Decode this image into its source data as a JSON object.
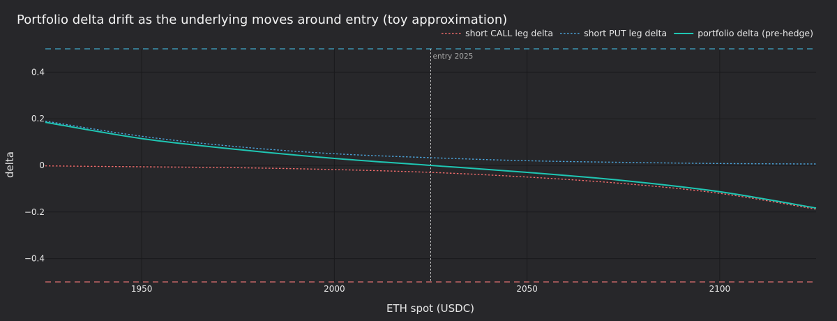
{
  "chart_data": {
    "type": "line",
    "title": "Portfolio delta drift as the underlying moves around entry (toy approximation)",
    "xlabel": "ETH spot (USDC)",
    "ylabel": "delta",
    "xlim": [
      1925,
      2125
    ],
    "ylim": [
      -0.5,
      0.5
    ],
    "x_ticks": [
      1950,
      2000,
      2050,
      2100
    ],
    "y_ticks": [
      -0.4,
      -0.2,
      0,
      0.2,
      0.4
    ],
    "y_tick_labels": [
      "−0.4",
      "−0.2",
      "0",
      "0.2",
      "0.4"
    ],
    "grid": true,
    "legend_position": "top-right",
    "x": [
      1925,
      1950,
      1975,
      2000,
      2025,
      2050,
      2075,
      2100,
      2125
    ],
    "series": [
      {
        "name": "short CALL leg delta",
        "style": "dotted",
        "color": "#ef6b6b",
        "values": [
          -0.002,
          -0.006,
          -0.01,
          -0.018,
          -0.03,
          -0.05,
          -0.078,
          -0.12,
          -0.188
        ]
      },
      {
        "name": "short PUT leg delta",
        "style": "dotted",
        "color": "#4ba3d9",
        "values": [
          0.19,
          0.125,
          0.08,
          0.05,
          0.033,
          0.02,
          0.013,
          0.008,
          0.006
        ]
      },
      {
        "name": "portfolio delta (pre-hedge)",
        "style": "solid",
        "color": "#1fc6b3",
        "values": [
          0.185,
          0.115,
          0.068,
          0.03,
          0.0,
          -0.03,
          -0.065,
          -0.113,
          -0.183
        ]
      }
    ],
    "reference_lines": {
      "upper": {
        "value": 0.5,
        "color": "#3fa9c9"
      },
      "lower": {
        "value": -0.5,
        "color": "#e07070"
      },
      "entry": {
        "x": 2025,
        "label": "entry 2025",
        "color": "#c8c8c8"
      }
    }
  }
}
